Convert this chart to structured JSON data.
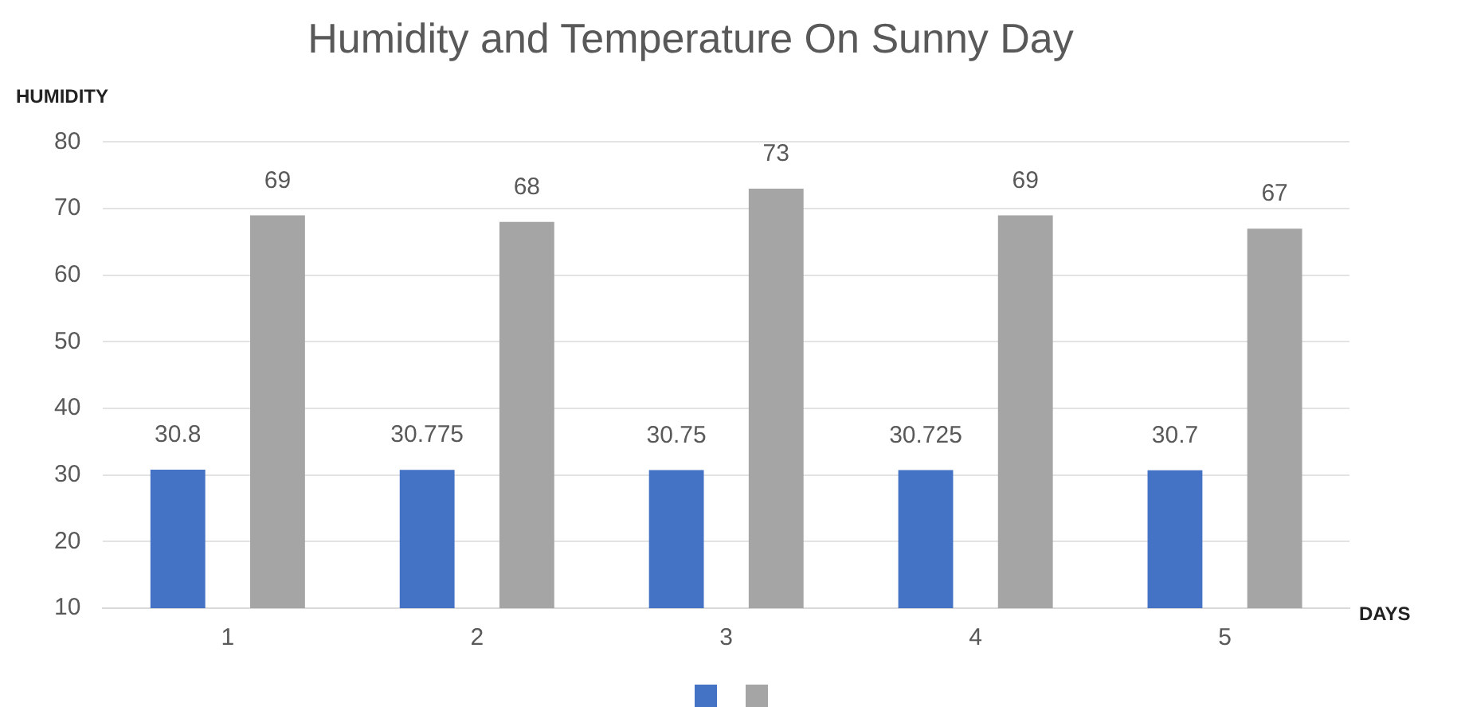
{
  "chart_data": {
    "type": "bar",
    "title": "Humidity and Temperature On Sunny Day",
    "xlabel": "DAYS",
    "ylabel": "HUMIDITY",
    "categories": [
      "1",
      "2",
      "3",
      "4",
      "5"
    ],
    "series": [
      {
        "color": "#4472c4",
        "values": [
          30.8,
          30.775,
          30.75,
          30.725,
          30.7
        ]
      },
      {
        "color": "#a5a5a5",
        "values": [
          69,
          68,
          73,
          69,
          67
        ]
      }
    ],
    "ylim": [
      10,
      80
    ],
    "yticks": [
      10,
      20,
      30,
      40,
      50,
      60,
      70,
      80
    ],
    "grid": "y",
    "data_labels": true
  }
}
